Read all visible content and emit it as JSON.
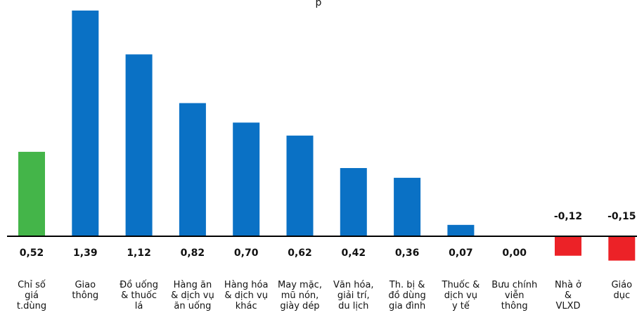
{
  "chart_data": {
    "type": "bar",
    "title_fragment": "p",
    "categories": [
      [
        "Chỉ số",
        "giá",
        "t.dùng"
      ],
      [
        "Giao",
        "thông"
      ],
      [
        "Đồ uống",
        "& thuốc",
        "lá"
      ],
      [
        "Hàng ăn",
        "& dịch vụ",
        "ăn uống"
      ],
      [
        "Hàng hóa",
        "& dịch vụ",
        "khác"
      ],
      [
        "May mặc,",
        "mũ nón,",
        "giày dép"
      ],
      [
        "Văn hóa,",
        "giải trí,",
        "du lịch"
      ],
      [
        "Th. bị &",
        "đồ dùng",
        "gia đình"
      ],
      [
        "Thuốc &",
        "dịch vụ",
        "y tế"
      ],
      [
        "Bưu chính",
        "viễn",
        "thông"
      ],
      [
        "Nhà ở",
        "&",
        "VLXD"
      ],
      [
        "Giáo",
        "dục"
      ]
    ],
    "values": [
      0.52,
      1.39,
      1.12,
      0.82,
      0.7,
      0.62,
      0.42,
      0.36,
      0.07,
      0.0,
      -0.12,
      -0.15
    ],
    "value_labels": [
      "0,52",
      "1,39",
      "1,12",
      "0,82",
      "0,70",
      "0,62",
      "0,42",
      "0,36",
      "0,07",
      "0,00",
      "-0,12",
      "-0,15"
    ],
    "ylim": [
      -0.15,
      1.39
    ],
    "colors": {
      "headline": "#44b549",
      "increase": "#0a71c5",
      "decrease": "#ec2227",
      "axis": "#000000"
    },
    "grid": false,
    "legend": "none"
  }
}
